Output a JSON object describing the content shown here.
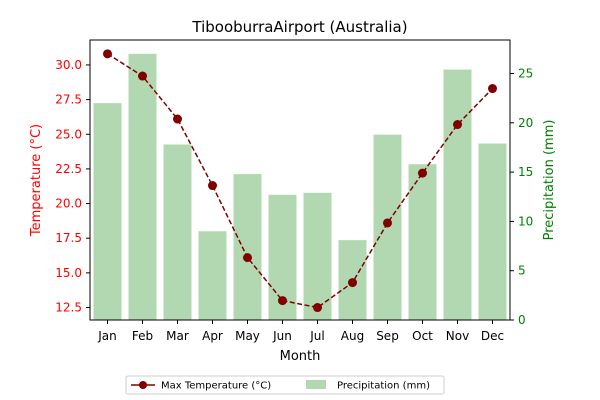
{
  "chart_data": {
    "type": "bar+line",
    "title": "TibooburraAirport (Australia)",
    "xlabel": "Month",
    "categories": [
      "Jan",
      "Feb",
      "Mar",
      "Apr",
      "May",
      "Jun",
      "Jul",
      "Aug",
      "Sep",
      "Oct",
      "Nov",
      "Dec"
    ],
    "left_axis": {
      "label": "Temperature (°C)",
      "color": "#ff0000",
      "ylim": [
        11.6,
        31.8
      ],
      "ticks": [
        "12.5",
        "15.0",
        "17.5",
        "20.0",
        "22.5",
        "25.0",
        "27.5",
        "30.0"
      ]
    },
    "right_axis": {
      "label": "Precipitation (mm)",
      "color": "#008000",
      "ylim": [
        0,
        28.4
      ],
      "ticks": [
        "0",
        "5",
        "10",
        "15",
        "20",
        "25"
      ]
    },
    "series": [
      {
        "name": "Max Temperature (°C)",
        "type": "line",
        "axis": "left",
        "color": "#800000",
        "values": [
          30.8,
          29.2,
          26.1,
          21.3,
          16.1,
          13.0,
          12.5,
          14.3,
          18.6,
          22.2,
          25.7,
          28.3
        ]
      },
      {
        "name": "Precipitation (mm)",
        "type": "bar",
        "axis": "right",
        "color": "#b2d8b2",
        "values": [
          22.0,
          27.0,
          17.8,
          9.0,
          14.8,
          12.7,
          12.9,
          8.1,
          18.8,
          15.8,
          25.4,
          17.9
        ]
      }
    ],
    "legend_position": "bottom-center",
    "grid": false
  }
}
